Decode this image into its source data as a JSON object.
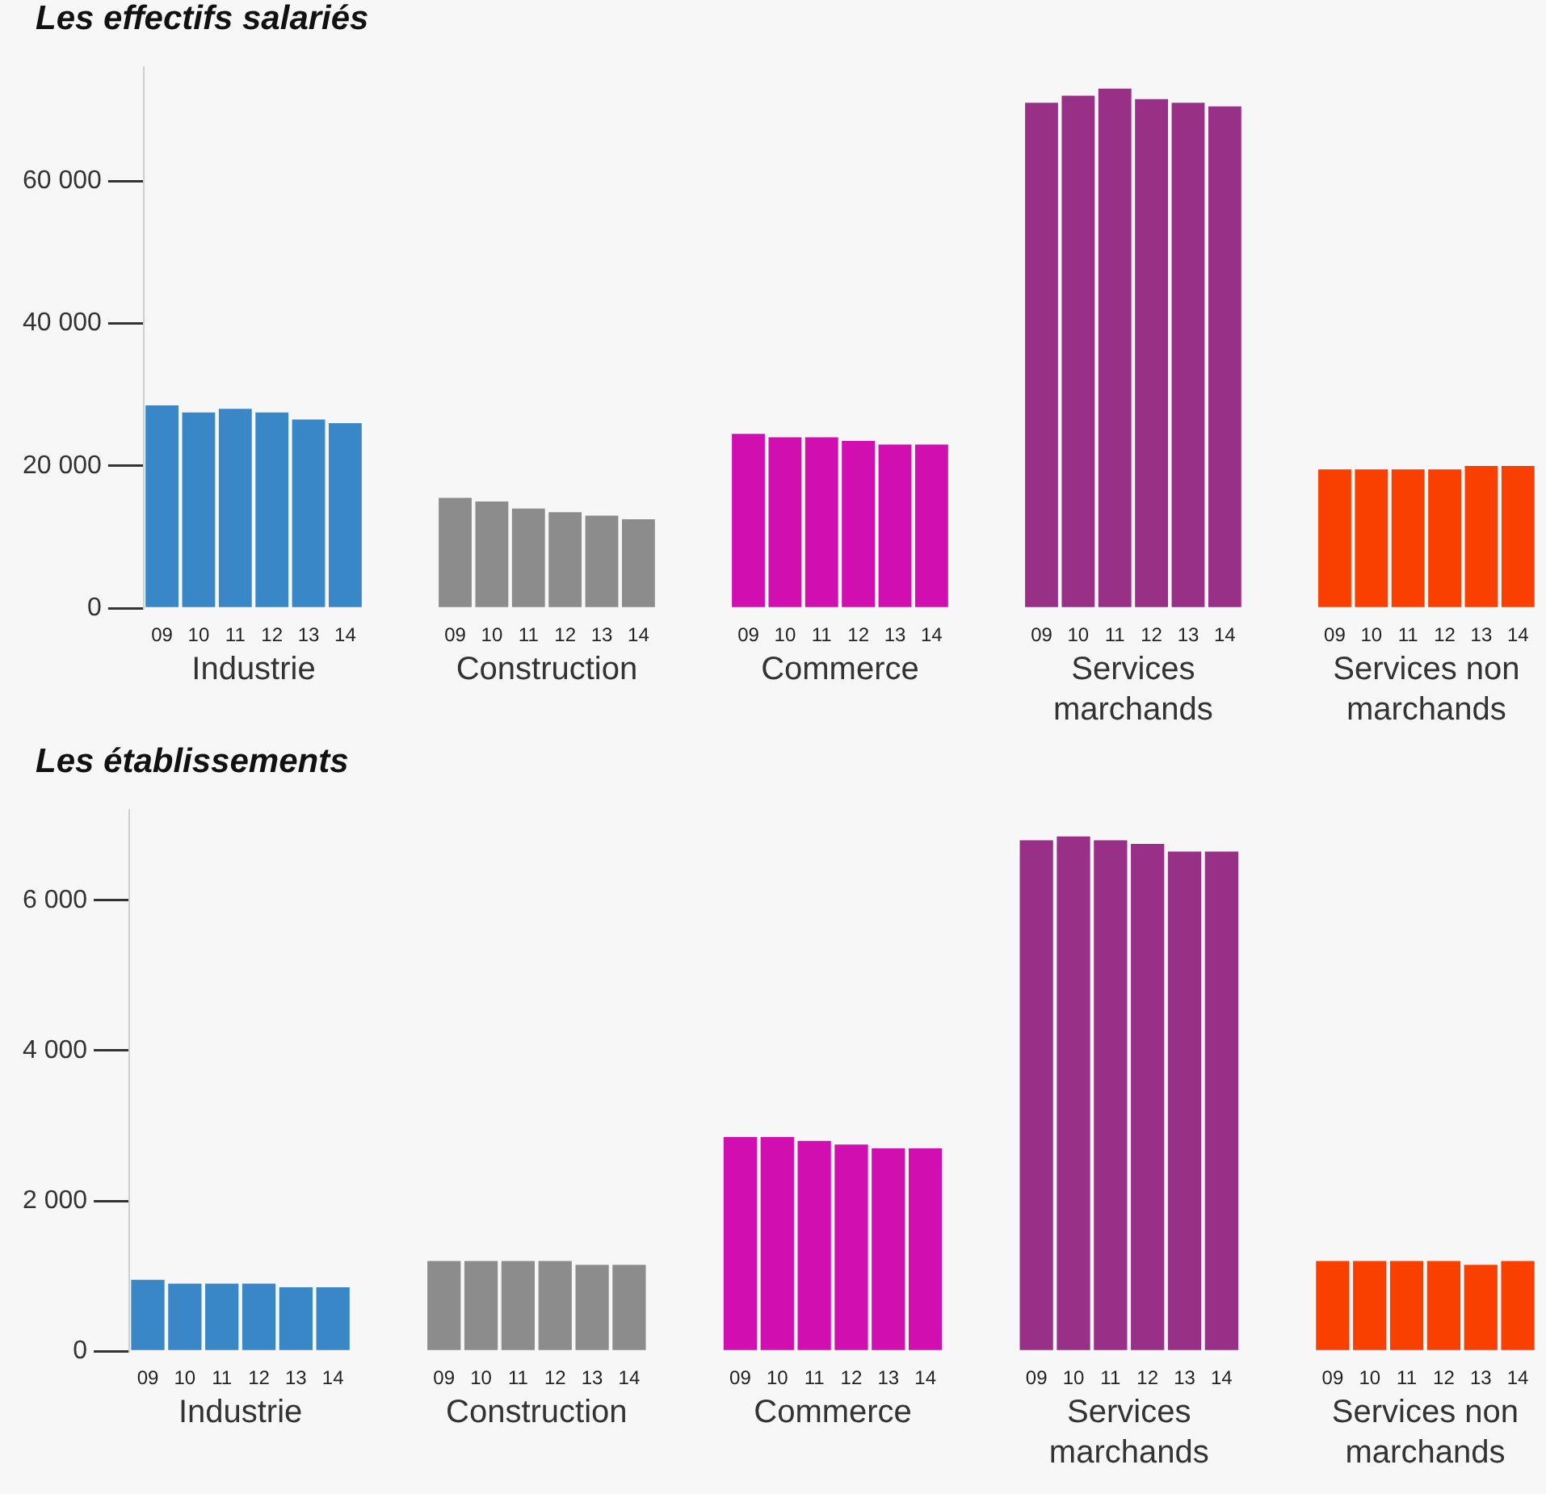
{
  "chart_data": [
    {
      "type": "bar",
      "title": "Les effectifs salariés",
      "categories": [
        "09",
        "10",
        "11",
        "12",
        "13",
        "14",
        null,
        null,
        "09",
        "10",
        "11",
        "12",
        "13",
        "14",
        null,
        null,
        "09",
        "10",
        "11",
        "12",
        "13",
        "14",
        null,
        null,
        "09",
        "10",
        "11",
        "12",
        "13",
        "14",
        null,
        null,
        "09",
        "10",
        "11",
        "12",
        "13",
        "14"
      ],
      "series": [
        {
          "name": "Industrie",
          "color": "#3a87c8",
          "values": [
            28500,
            27500,
            28000,
            27500,
            26500,
            26000,
            null,
            null,
            null,
            null,
            null,
            null,
            null,
            null,
            null,
            null,
            null,
            null,
            null,
            null,
            null,
            null,
            null,
            null,
            null,
            null,
            null,
            null,
            null,
            null,
            null,
            null,
            null,
            null,
            null,
            null,
            null,
            null
          ]
        },
        {
          "name": "Construction",
          "color": "#8c8c8c",
          "values": [
            null,
            null,
            null,
            null,
            null,
            null,
            null,
            null,
            15500,
            15000,
            14000,
            13500,
            13000,
            12500,
            null,
            null,
            null,
            null,
            null,
            null,
            null,
            null,
            null,
            null,
            null,
            null,
            null,
            null,
            null,
            null,
            null,
            null,
            null,
            null,
            null,
            null,
            null,
            null
          ]
        },
        {
          "name": "Commerce",
          "color": "#d10fb0",
          "values": [
            null,
            null,
            null,
            null,
            null,
            null,
            null,
            null,
            null,
            null,
            null,
            null,
            null,
            null,
            null,
            null,
            24500,
            24000,
            24000,
            23500,
            23000,
            23000,
            null,
            null,
            null,
            null,
            null,
            null,
            null,
            null,
            null,
            null,
            null,
            null,
            null,
            null,
            null,
            null
          ]
        },
        {
          "name": "Services marchands",
          "color": "#993087",
          "values": [
            null,
            null,
            null,
            null,
            null,
            null,
            null,
            null,
            null,
            null,
            null,
            null,
            null,
            null,
            null,
            null,
            null,
            null,
            null,
            null,
            null,
            null,
            null,
            null,
            71000,
            72000,
            73000,
            71500,
            71000,
            70500,
            null,
            null,
            null,
            null,
            null,
            null,
            null,
            null
          ]
        },
        {
          "name": "Services non marchands",
          "color": "#f94000",
          "values": [
            null,
            null,
            null,
            null,
            null,
            null,
            null,
            null,
            null,
            null,
            null,
            null,
            null,
            null,
            null,
            null,
            null,
            null,
            null,
            null,
            null,
            null,
            null,
            null,
            null,
            null,
            null,
            null,
            null,
            null,
            null,
            null,
            19500,
            19500,
            19500,
            19500,
            20000,
            20000
          ]
        }
      ],
      "ylim": [
        0,
        76000
      ],
      "yticks": [
        0,
        {
          "value": 20000,
          "label": "20 000"
        },
        {
          "value": 40000,
          "label": "40 000"
        },
        {
          "value": 60000,
          "label": "60 000"
        }
      ],
      "grid": false,
      "legend": false
    },
    {
      "type": "bar",
      "title": "Les établissements",
      "categories": [
        "09",
        "10",
        "11",
        "12",
        "13",
        "14",
        null,
        null,
        "09",
        "10",
        "11",
        "12",
        "13",
        "14",
        null,
        null,
        "09",
        "10",
        "11",
        "12",
        "13",
        "14",
        null,
        null,
        "09",
        "10",
        "11",
        "12",
        "13",
        "14",
        null,
        null,
        "09",
        "10",
        "11",
        "12",
        "13",
        "14"
      ],
      "series": [
        {
          "name": "Industrie",
          "color": "#3a87c8",
          "values": [
            950,
            900,
            900,
            900,
            850,
            850,
            null,
            null,
            null,
            null,
            null,
            null,
            null,
            null,
            null,
            null,
            null,
            null,
            null,
            null,
            null,
            null,
            null,
            null,
            null,
            null,
            null,
            null,
            null,
            null,
            null,
            null,
            null,
            null,
            null,
            null,
            null,
            null
          ]
        },
        {
          "name": "Construction",
          "color": "#8c8c8c",
          "values": [
            null,
            null,
            null,
            null,
            null,
            null,
            null,
            null,
            1200,
            1200,
            1200,
            1200,
            1150,
            1150,
            null,
            null,
            null,
            null,
            null,
            null,
            null,
            null,
            null,
            null,
            null,
            null,
            null,
            null,
            null,
            null,
            null,
            null,
            null,
            null,
            null,
            null,
            null,
            null
          ]
        },
        {
          "name": "Commerce",
          "color": "#d10fb0",
          "values": [
            null,
            null,
            null,
            null,
            null,
            null,
            null,
            null,
            null,
            null,
            null,
            null,
            null,
            null,
            null,
            null,
            2850,
            2850,
            2800,
            2750,
            2700,
            2700,
            null,
            null,
            null,
            null,
            null,
            null,
            null,
            null,
            null,
            null,
            null,
            null,
            null,
            null,
            null,
            null
          ]
        },
        {
          "name": "Services marchands",
          "color": "#993087",
          "values": [
            null,
            null,
            null,
            null,
            null,
            null,
            null,
            null,
            null,
            null,
            null,
            null,
            null,
            null,
            null,
            null,
            null,
            null,
            null,
            null,
            null,
            null,
            null,
            null,
            6800,
            6850,
            6800,
            6750,
            6650,
            6650,
            null,
            null,
            null,
            null,
            null,
            null,
            null,
            null
          ]
        },
        {
          "name": "Services non marchands",
          "color": "#f94000",
          "values": [
            null,
            null,
            null,
            null,
            null,
            null,
            null,
            null,
            null,
            null,
            null,
            null,
            null,
            null,
            null,
            null,
            null,
            null,
            null,
            null,
            null,
            null,
            null,
            null,
            null,
            null,
            null,
            null,
            null,
            null,
            null,
            null,
            1200,
            1200,
            1200,
            1200,
            1150,
            1200
          ]
        }
      ],
      "ylim": [
        0,
        7200
      ],
      "yticks": [
        0,
        {
          "value": 2000,
          "label": "2 000"
        },
        {
          "value": 4000,
          "label": "4 000"
        },
        {
          "value": 6000,
          "label": "6 000"
        }
      ],
      "grid": false,
      "legend": false
    }
  ]
}
